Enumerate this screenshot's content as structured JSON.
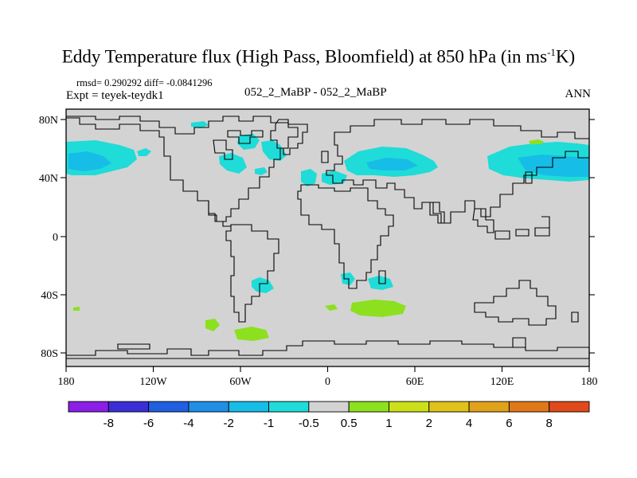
{
  "title": {
    "main": "Eddy Temperature flux (High Pass, Bloomfield) at 850 hPa (in ms",
    "sup": "-1",
    "tail": "K)"
  },
  "stats": "rmsd= 0.290292 diff= -0.0841296",
  "expt": "Expt = teyek-teydk1",
  "center_label": "052_2_MaBP - 052_2_MaBP",
  "season": "ANN",
  "colors": {
    "land_fill": "#d3d3d3",
    "coast": "#000000",
    "scale": [
      "#8c1fe6",
      "#3a2fd6",
      "#1f5fe0",
      "#1f8fe6",
      "#16bde6",
      "#1fdcd8",
      "#d3d3d3",
      "#8ce01f",
      "#cce01a",
      "#e0c21a",
      "#e0a21a",
      "#e0781a",
      "#e04a1a"
    ]
  },
  "chart_data": {
    "type": "heatmap",
    "title": "Eddy Temperature flux (High Pass, Bloomfield) at 850 hPa (in ms-1K)",
    "x_axis": {
      "ticks": [
        "180",
        "120W",
        "60W",
        "0",
        "60E",
        "120E",
        "180"
      ]
    },
    "y_axis": {
      "ticks": [
        "80N",
        "40N",
        "0",
        "40S",
        "80S"
      ]
    },
    "colorbar": {
      "labels": [
        "-8",
        "-6",
        "-4",
        "-2",
        "-1",
        "-0.5",
        "0.5",
        "1",
        "2",
        "4",
        "6",
        "8"
      ]
    }
  }
}
